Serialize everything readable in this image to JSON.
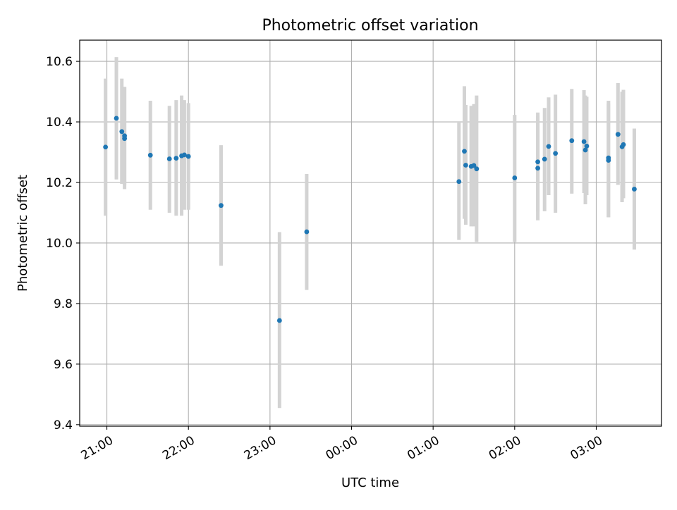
{
  "chart_data": {
    "type": "scatter",
    "title": "Photometric offset variation",
    "xlabel": "UTC time",
    "ylabel": "Photometric offset",
    "x_axis_kind": "time of day (UTC), crossing midnight",
    "x_tick_labels": [
      "21:00",
      "22:00",
      "23:00",
      "00:00",
      "01:00",
      "02:00",
      "03:00"
    ],
    "y_tick_values": [
      9.4,
      9.6,
      9.8,
      10.0,
      10.2,
      10.4,
      10.6
    ],
    "y_tick_labels": [
      "9.4",
      "9.6",
      "9.8",
      "10.0",
      "10.2",
      "10.4",
      "10.6"
    ],
    "xlim": [
      "20:40",
      "03:48"
    ],
    "ylim": [
      9.395,
      10.67
    ],
    "grid": true,
    "error_bar_color": "#d3d3d3",
    "marker_color": "#1f77b4",
    "points": [
      {
        "x": "20:59",
        "y": 10.317,
        "ylow": 10.09,
        "yhigh": 10.543
      },
      {
        "x": "21:07",
        "y": 10.412,
        "ylow": 10.21,
        "yhigh": 10.614
      },
      {
        "x": "21:11",
        "y": 10.368,
        "ylow": 10.195,
        "yhigh": 10.543
      },
      {
        "x": "21:13",
        "y": 10.345,
        "ylow": 10.178,
        "yhigh": 10.516
      },
      {
        "x": "21:13",
        "y": 10.354,
        "ylow": 10.19,
        "yhigh": 10.515
      },
      {
        "x": "21:32",
        "y": 10.29,
        "ylow": 10.11,
        "yhigh": 10.47
      },
      {
        "x": "21:46",
        "y": 10.278,
        "ylow": 10.1,
        "yhigh": 10.453
      },
      {
        "x": "21:51",
        "y": 10.28,
        "ylow": 10.09,
        "yhigh": 10.472
      },
      {
        "x": "21:55",
        "y": 10.288,
        "ylow": 10.09,
        "yhigh": 10.487
      },
      {
        "x": "21:57",
        "y": 10.291,
        "ylow": 10.11,
        "yhigh": 10.472
      },
      {
        "x": "22:00",
        "y": 10.286,
        "ylow": 10.11,
        "yhigh": 10.462
      },
      {
        "x": "22:24",
        "y": 10.124,
        "ylow": 9.925,
        "yhigh": 10.323
      },
      {
        "x": "23:07",
        "y": 9.744,
        "ylow": 9.455,
        "yhigh": 10.036
      },
      {
        "x": "23:27",
        "y": 10.037,
        "ylow": 9.845,
        "yhigh": 10.228
      },
      {
        "x": "01:19",
        "y": 10.203,
        "ylow": 10.01,
        "yhigh": 10.4
      },
      {
        "x": "01:23",
        "y": 10.303,
        "ylow": 10.08,
        "yhigh": 10.518
      },
      {
        "x": "01:24",
        "y": 10.257,
        "ylow": 10.06,
        "yhigh": 10.456
      },
      {
        "x": "01:28",
        "y": 10.253,
        "ylow": 10.055,
        "yhigh": 10.453
      },
      {
        "x": "01:30",
        "y": 10.256,
        "ylow": 10.055,
        "yhigh": 10.459
      },
      {
        "x": "01:32",
        "y": 10.245,
        "ylow": 10.003,
        "yhigh": 10.487
      },
      {
        "x": "02:00",
        "y": 10.215,
        "ylow": 10.003,
        "yhigh": 10.423
      },
      {
        "x": "02:17",
        "y": 10.268,
        "ylow": 10.105,
        "yhigh": 10.431
      },
      {
        "x": "02:17",
        "y": 10.247,
        "ylow": 10.075,
        "yhigh": 10.42
      },
      {
        "x": "02:22",
        "y": 10.277,
        "ylow": 10.105,
        "yhigh": 10.446
      },
      {
        "x": "02:25",
        "y": 10.319,
        "ylow": 10.158,
        "yhigh": 10.481
      },
      {
        "x": "02:30",
        "y": 10.296,
        "ylow": 10.1,
        "yhigh": 10.49
      },
      {
        "x": "02:42",
        "y": 10.338,
        "ylow": 10.163,
        "yhigh": 10.509
      },
      {
        "x": "02:51",
        "y": 10.335,
        "ylow": 10.165,
        "yhigh": 10.505
      },
      {
        "x": "02:52",
        "y": 10.307,
        "ylow": 10.128,
        "yhigh": 10.487
      },
      {
        "x": "02:53",
        "y": 10.32,
        "ylow": 10.158,
        "yhigh": 10.483
      },
      {
        "x": "03:09",
        "y": 10.281,
        "ylow": 10.085,
        "yhigh": 10.47
      },
      {
        "x": "03:09",
        "y": 10.273,
        "ylow": 10.085,
        "yhigh": 10.46
      },
      {
        "x": "03:16",
        "y": 10.359,
        "ylow": 10.192,
        "yhigh": 10.528
      },
      {
        "x": "03:19",
        "y": 10.318,
        "ylow": 10.135,
        "yhigh": 10.5
      },
      {
        "x": "03:20",
        "y": 10.325,
        "ylow": 10.148,
        "yhigh": 10.506
      },
      {
        "x": "03:28",
        "y": 10.178,
        "ylow": 9.978,
        "yhigh": 10.378
      }
    ]
  }
}
